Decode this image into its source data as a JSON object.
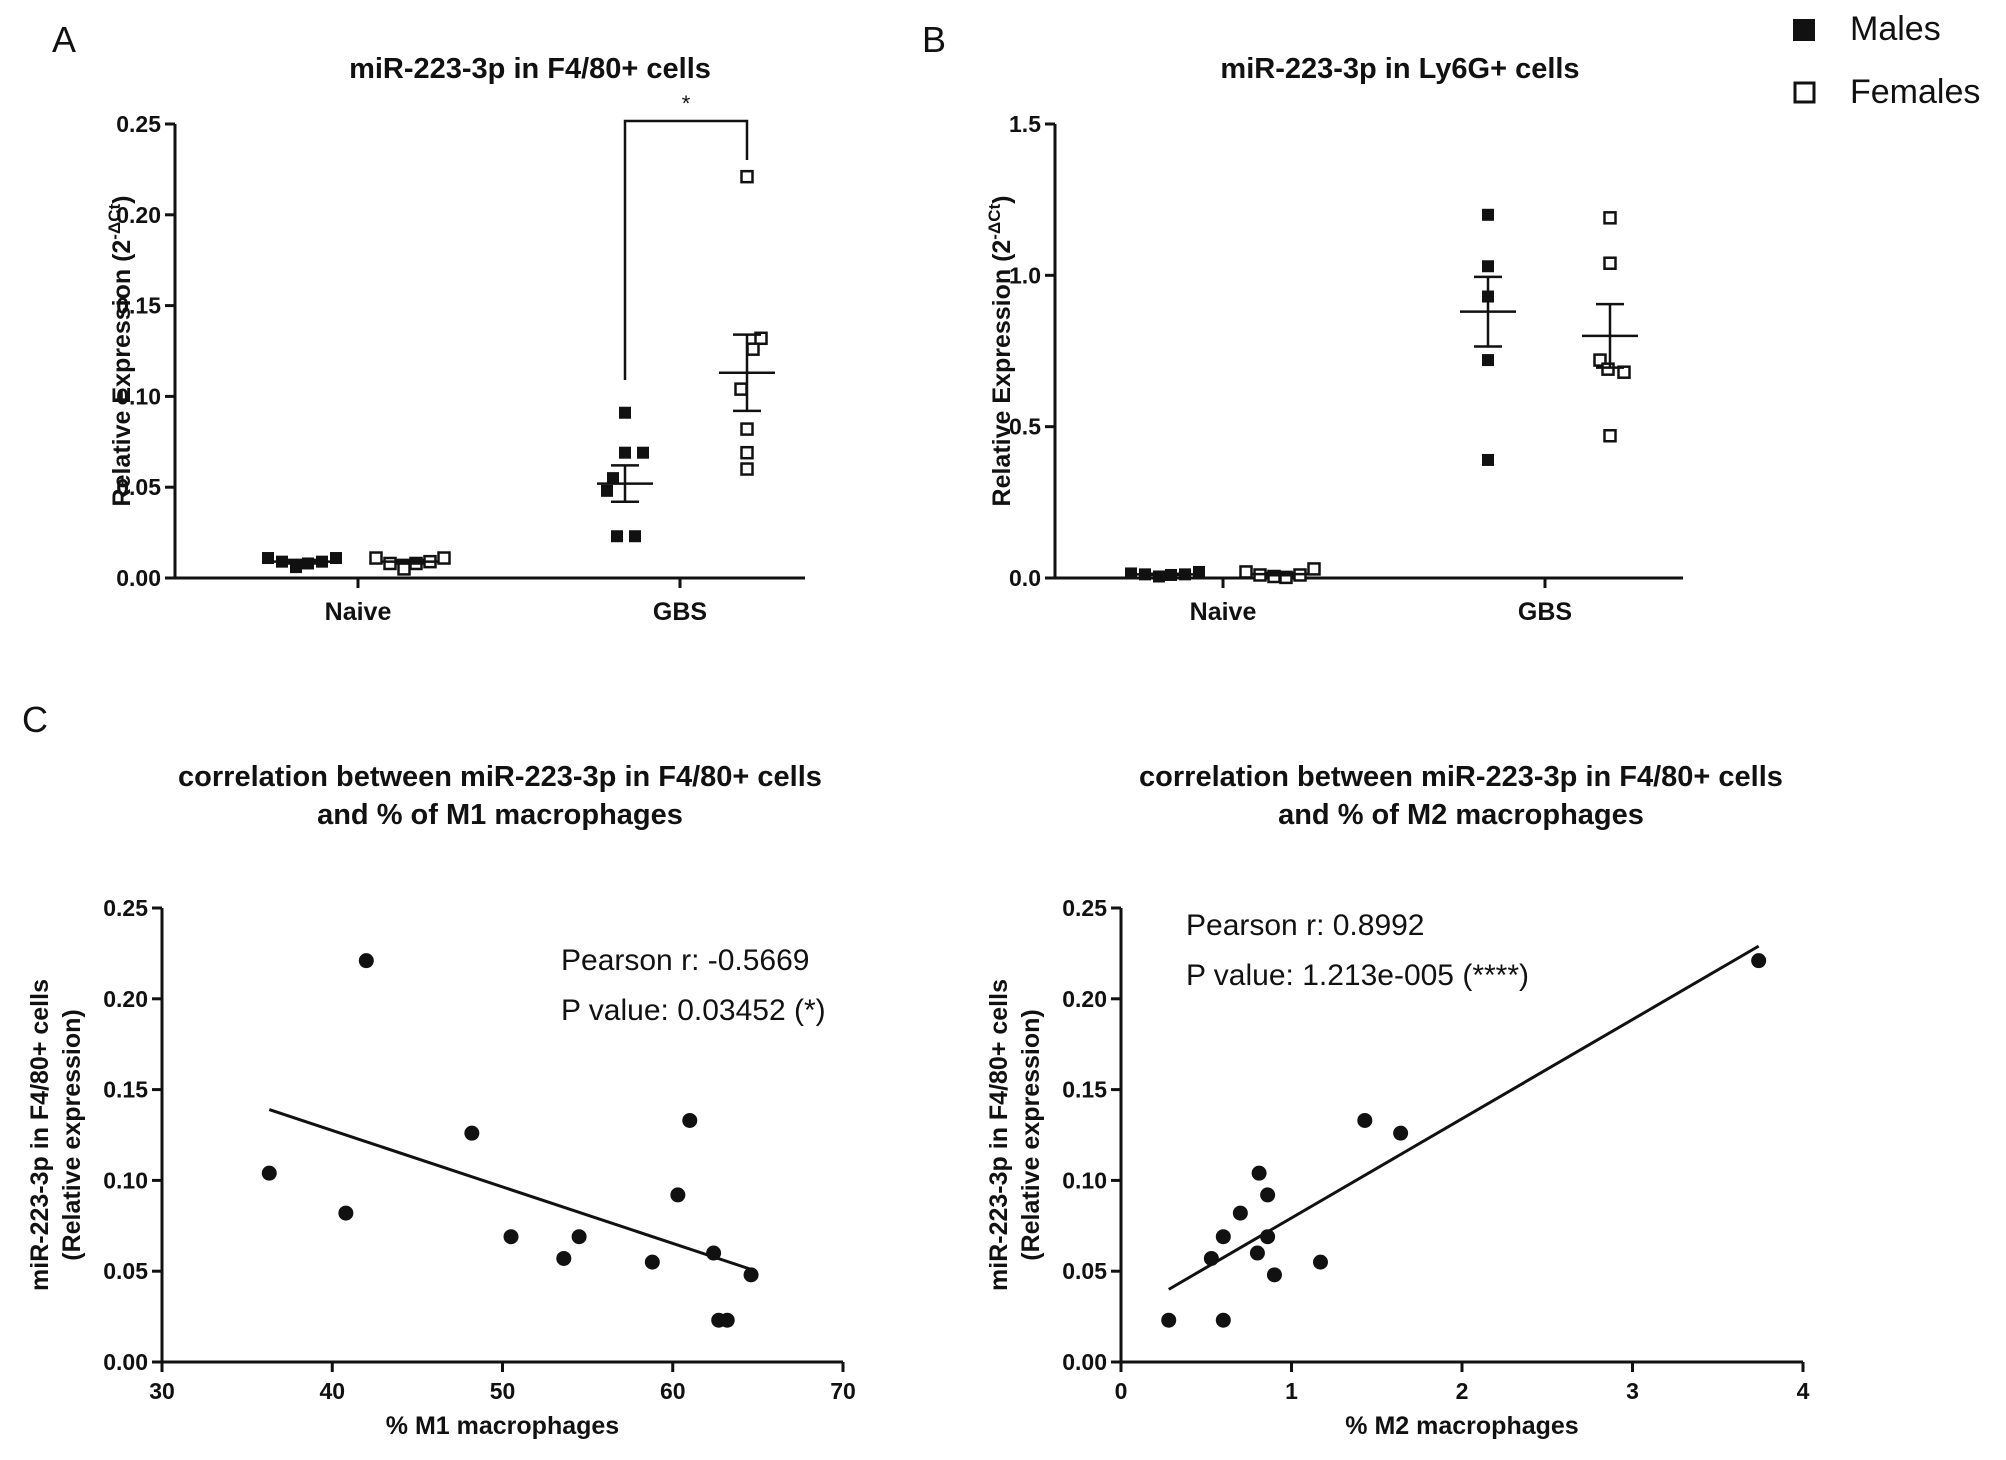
{
  "legend": {
    "males": "Males",
    "females": "Females"
  },
  "panels": {
    "a": {
      "letter": "A"
    },
    "b": {
      "letter": "B"
    },
    "c": {
      "letter": "C"
    }
  },
  "chart_data": [
    {
      "type": "scatter",
      "panel": "A",
      "title": "miR-223-3p in F4/80+ cells",
      "ylabel": "Relative Expression (2",
      "ylabel_sup": "-ΔCt",
      "ylabel_close": ")",
      "ylim": [
        0,
        0.25
      ],
      "yticks": [
        "0.00",
        "0.05",
        "0.10",
        "0.15",
        "0.20",
        "0.25"
      ],
      "ytick_values": [
        0,
        0.05,
        0.1,
        0.15,
        0.2,
        0.25
      ],
      "categories": [
        "Naive",
        "GBS"
      ],
      "significance": "*",
      "groups": [
        {
          "category": "Naive",
          "sex": "Males",
          "marker": "filled-square",
          "values": [
            0.011,
            0.009,
            0.006,
            0.008,
            0.009,
            0.011
          ],
          "mean": 0.009,
          "sem": 0.001
        },
        {
          "category": "Naive",
          "sex": "Females",
          "marker": "open-square",
          "values": [
            0.011,
            0.008,
            0.005,
            0.008,
            0.009,
            0.011
          ],
          "mean": 0.009,
          "sem": 0.001
        },
        {
          "category": "GBS",
          "sex": "Males",
          "marker": "filled-square",
          "values": [
            0.091,
            0.069,
            0.055,
            0.048,
            0.069,
            0.023,
            0.023
          ],
          "mean": 0.052,
          "sem": 0.01
        },
        {
          "category": "GBS",
          "sex": "Females",
          "marker": "open-square",
          "values": [
            0.221,
            0.132,
            0.126,
            0.104,
            0.082,
            0.069,
            0.06
          ],
          "mean": 0.113,
          "sem": 0.021
        }
      ]
    },
    {
      "type": "scatter",
      "panel": "B",
      "title": "miR-223-3p in Ly6G+ cells",
      "ylabel": "Relative Expression (2",
      "ylabel_sup": "-ΔCt",
      "ylabel_close": ")",
      "ylim": [
        0,
        1.5
      ],
      "yticks": [
        "0.0",
        "0.5",
        "1.0",
        "1.5"
      ],
      "ytick_values": [
        0,
        0.5,
        1.0,
        1.5
      ],
      "categories": [
        "Naive",
        "GBS"
      ],
      "groups": [
        {
          "category": "Naive",
          "sex": "Males",
          "marker": "filled-square",
          "values": [
            0.015,
            0.012,
            0.005,
            0.01,
            0.012,
            0.02
          ],
          "mean": 0.012,
          "sem": 0.002
        },
        {
          "category": "Naive",
          "sex": "Females",
          "marker": "open-square",
          "values": [
            0.02,
            0.01,
            0.005,
            0.002,
            0.01,
            0.03
          ],
          "mean": 0.013,
          "sem": 0.004
        },
        {
          "category": "GBS",
          "sex": "Males",
          "marker": "filled-square",
          "values": [
            1.2,
            1.03,
            0.93,
            0.72,
            0.39
          ],
          "mean": 0.88,
          "sem": 0.115
        },
        {
          "category": "GBS",
          "sex": "Females",
          "marker": "open-square",
          "values": [
            1.19,
            1.04,
            0.72,
            0.68,
            0.69,
            0.47
          ],
          "mean": 0.8,
          "sem": 0.105
        }
      ]
    },
    {
      "type": "scatter",
      "panel": "C-left",
      "title_line1": "correlation between miR-223-3p in F4/80+ cells",
      "title_line2": "and % of M1 macrophages",
      "xlabel": "% M1 macrophages",
      "ylabel_line1": "miR-223-3p in F4/80+ cells",
      "ylabel_line2": "(Relative expression)",
      "xlim": [
        30,
        70
      ],
      "ylim": [
        0,
        0.25
      ],
      "xticks": [
        "30",
        "40",
        "50",
        "60",
        "70"
      ],
      "xtick_values": [
        30,
        40,
        50,
        60,
        70
      ],
      "yticks": [
        "0.00",
        "0.05",
        "0.10",
        "0.15",
        "0.20",
        "0.25"
      ],
      "ytick_values": [
        0,
        0.05,
        0.1,
        0.15,
        0.2,
        0.25
      ],
      "pearson": "Pearson r: -0.5669",
      "pvalue": "P value: 0.03452 (*)",
      "x": [
        42.0,
        36.3,
        40.8,
        48.2,
        50.5,
        53.6,
        54.5,
        58.8,
        60.3,
        61.0,
        62.4,
        62.7,
        63.2,
        64.6
      ],
      "y": [
        0.221,
        0.104,
        0.082,
        0.126,
        0.069,
        0.057,
        0.069,
        0.055,
        0.092,
        0.133,
        0.06,
        0.023,
        0.023,
        0.048
      ],
      "fit": {
        "x": [
          36.3,
          64.6
        ],
        "y": [
          0.139,
          0.051
        ]
      }
    },
    {
      "type": "scatter",
      "panel": "C-right",
      "title_line1": "correlation between miR-223-3p in F4/80+ cells",
      "title_line2": "and % of M2 macrophages",
      "xlabel": "% M2 macrophages",
      "ylabel_line1": "miR-223-3p in F4/80+ cells",
      "ylabel_line2": "(Relative expression)",
      "xlim": [
        0,
        4
      ],
      "ylim": [
        0,
        0.25
      ],
      "xticks": [
        "0",
        "1",
        "2",
        "3",
        "4"
      ],
      "xtick_values": [
        0,
        1,
        2,
        3,
        4
      ],
      "yticks": [
        "0.00",
        "0.05",
        "0.10",
        "0.15",
        "0.20",
        "0.25"
      ],
      "ytick_values": [
        0,
        0.05,
        0.1,
        0.15,
        0.2,
        0.25
      ],
      "pearson": "Pearson r: 0.8992",
      "pvalue": "P value: 1.213e-005 (****)",
      "x": [
        3.74,
        1.43,
        1.64,
        0.81,
        0.86,
        0.7,
        0.6,
        0.86,
        0.53,
        0.8,
        0.9,
        1.17,
        0.28,
        0.6
      ],
      "y": [
        0.221,
        0.133,
        0.126,
        0.104,
        0.092,
        0.082,
        0.069,
        0.069,
        0.057,
        0.06,
        0.048,
        0.055,
        0.023,
        0.023
      ],
      "fit": {
        "x": [
          0.28,
          3.74
        ],
        "y": [
          0.04,
          0.229
        ]
      }
    }
  ]
}
